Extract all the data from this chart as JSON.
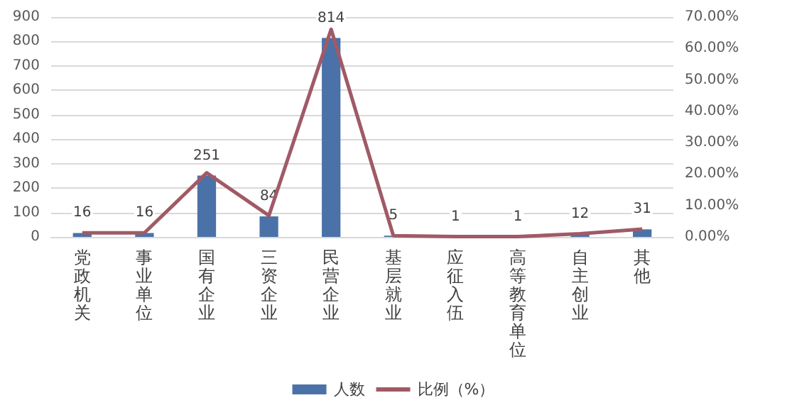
{
  "chart_data": {
    "type": "bar",
    "categories": [
      "党政机关",
      "事业单位",
      "国有企业",
      "三资企业",
      "民营企业",
      "基层就业",
      "应征入伍",
      "高等教育单位",
      "自主创业",
      "其他"
    ],
    "series": [
      {
        "name": "人数",
        "color": "#4a72a8",
        "values": [
          16,
          16,
          251,
          84,
          814,
          5,
          1,
          1,
          12,
          31
        ],
        "data_labels": true
      },
      {
        "name": "比例（%）",
        "type": "line",
        "axis": "y2",
        "color": "#a05a66",
        "values": [
          1.3,
          1.3,
          20.4,
          6.8,
          66.1,
          0.4,
          0.1,
          0.1,
          1.0,
          2.5
        ]
      }
    ],
    "ylim": [
      0,
      900
    ],
    "yticks": [
      0,
      100,
      200,
      300,
      400,
      500,
      600,
      700,
      800,
      900
    ],
    "y2lim": [
      0,
      70
    ],
    "y2ticks": [
      {
        "value": 0,
        "label": "0.00%"
      },
      {
        "value": 10,
        "label": "10.00%"
      },
      {
        "value": 20,
        "label": "20.00%"
      },
      {
        "value": 30,
        "label": "30.00%"
      },
      {
        "value": 40,
        "label": "40.00%"
      },
      {
        "value": 50,
        "label": "50.00%"
      },
      {
        "value": 60,
        "label": "60.00%"
      },
      {
        "value": 70,
        "label": "70.00%"
      }
    ],
    "grid": "y",
    "legend": "bottom",
    "marker": "none",
    "line_style": "solid"
  }
}
